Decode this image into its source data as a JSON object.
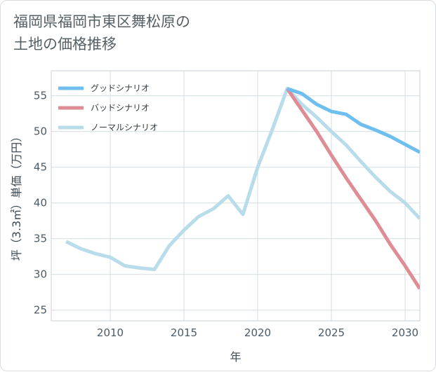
{
  "chart_data": {
    "type": "line",
    "title": "福岡県福岡市東区舞松原の\n土地の価格推移",
    "xlabel": "年",
    "ylabel": "坪（3.3㎡）単価（万円）",
    "xlim": [
      2006,
      2031
    ],
    "ylim": [
      23.5,
      58.5
    ],
    "xticks": [
      2010,
      2015,
      2020,
      2025,
      2030
    ],
    "yticks": [
      25,
      30,
      35,
      40,
      45,
      50,
      55
    ],
    "grid": true,
    "legend_position": "top-left",
    "series": [
      {
        "name": "グッドシナリオ",
        "color": "#6ebff0",
        "x": [
          2022,
          2023,
          2024,
          2025,
          2026,
          2027,
          2028,
          2029,
          2030,
          2031
        ],
        "values": [
          56.0,
          55.3,
          53.8,
          52.8,
          52.4,
          51.0,
          50.2,
          49.3,
          48.2,
          47.1
        ]
      },
      {
        "name": "バッドシナリオ",
        "color": "#df8d95",
        "x": [
          2022,
          2023,
          2024,
          2025,
          2026,
          2027,
          2028,
          2029,
          2030,
          2031
        ],
        "values": [
          56.0,
          53.0,
          50.0,
          46.7,
          43.5,
          40.5,
          37.5,
          34.2,
          31.2,
          28.0
        ]
      },
      {
        "name": "ノーマルシナリオ",
        "color": "#b9dceb",
        "x": [
          2007,
          2008,
          2009,
          2010,
          2011,
          2012,
          2013,
          2014,
          2015,
          2016,
          2017,
          2018,
          2019,
          2020,
          2021,
          2022,
          2023,
          2024,
          2025,
          2026,
          2027,
          2028,
          2029,
          2030,
          2031
        ],
        "values": [
          34.6,
          33.6,
          32.9,
          32.4,
          31.2,
          30.9,
          30.7,
          34.0,
          36.2,
          38.1,
          39.2,
          41.0,
          38.4,
          45.0,
          50.3,
          56.0,
          53.8,
          52.0,
          50.0,
          48.1,
          45.8,
          43.6,
          41.6,
          40.0,
          37.8
        ]
      }
    ]
  }
}
